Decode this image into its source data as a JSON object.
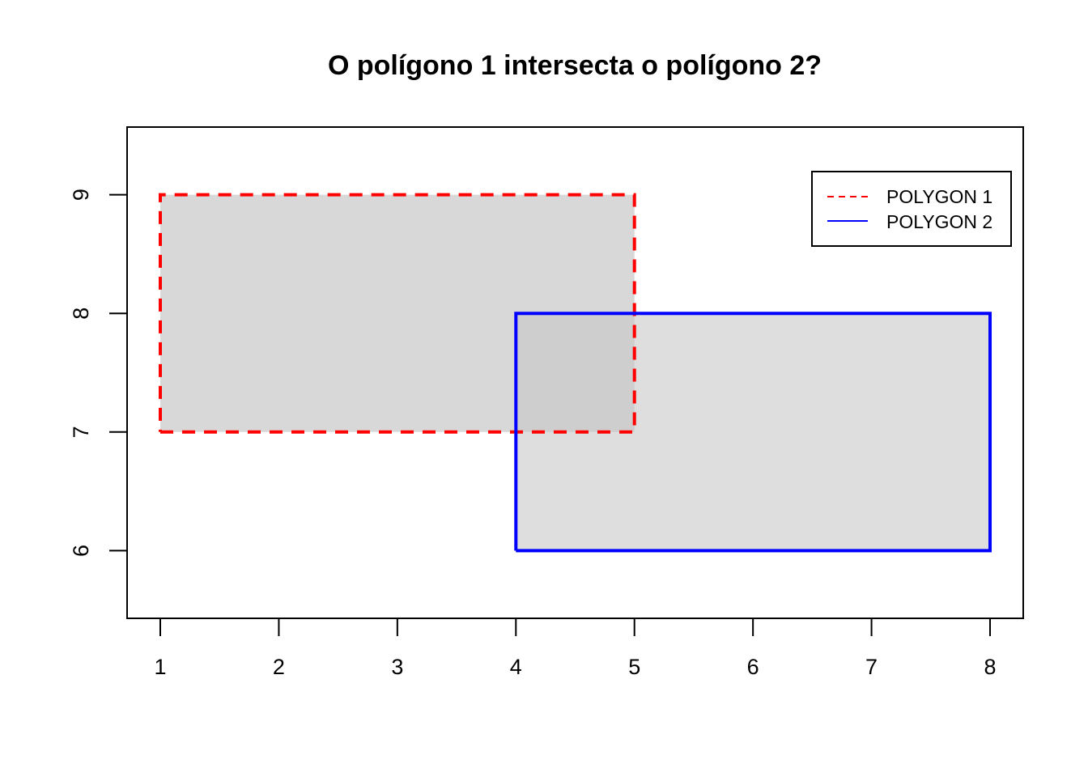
{
  "chart_data": {
    "type": "polygon",
    "title": "O polígono 1 intersecta o polígono 2?",
    "xlabel": "",
    "ylabel": "",
    "xlim": [
      0.72,
      8.28
    ],
    "ylim": [
      5.43,
      9.57
    ],
    "x_ticks": [
      1,
      2,
      3,
      4,
      5,
      6,
      7,
      8
    ],
    "y_ticks": [
      6,
      7,
      8,
      9
    ],
    "grid": false,
    "legend_position": "top-right",
    "series": [
      {
        "name": "POLYGON 1",
        "legend_label": "POLYGON 1",
        "coordinates": [
          [
            1,
            7
          ],
          [
            5,
            7
          ],
          [
            5,
            9
          ],
          [
            1,
            9
          ],
          [
            1,
            7
          ]
        ],
        "line_style": "dashed",
        "line_color": "#ff0000",
        "fill_color": "#bebebe",
        "fill_opacity": 0.6
      },
      {
        "name": "POLYGON 2",
        "legend_label": "POLYGON 2",
        "coordinates": [
          [
            4,
            6
          ],
          [
            8,
            6
          ],
          [
            8,
            8
          ],
          [
            4,
            8
          ],
          [
            4,
            6
          ]
        ],
        "line_style": "solid",
        "line_color": "#0000ff",
        "fill_color": "#c8c8c8",
        "fill_opacity": 0.6
      }
    ]
  }
}
